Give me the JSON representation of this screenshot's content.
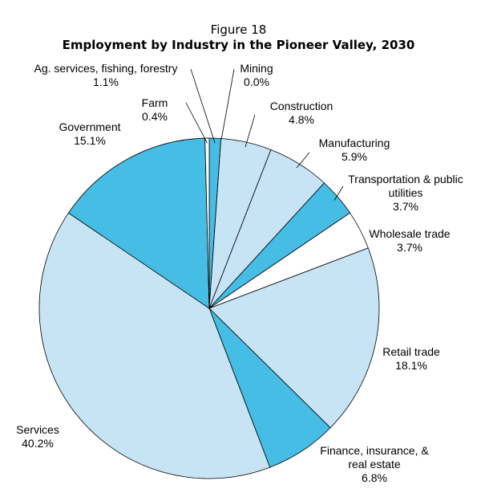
{
  "chart_data": {
    "type": "pie",
    "supertitle": "Figure 18",
    "title": "Employment by Industry in the Pioneer Valley, 2030",
    "categories": [
      "Ag. services, fishing, forestry",
      "Mining",
      "Construction",
      "Manufacturing",
      "Transportation & public utilities",
      "Wholesale trade",
      "Retail trade",
      "Finance, insurance, & real estate",
      "Services",
      "Government",
      "Farm"
    ],
    "values": [
      1.1,
      0.0,
      4.8,
      5.9,
      3.7,
      3.7,
      18.1,
      6.8,
      40.2,
      15.1,
      0.4
    ],
    "value_labels": [
      "1.1%",
      "0.0%",
      "4.8%",
      "5.9%",
      "3.7%",
      "3.7%",
      "18.1%",
      "6.8%",
      "40.2%",
      "15.1%",
      "0.4%"
    ],
    "colors": [
      "#45bde4",
      "#45bde4",
      "#c6e4f4",
      "#c6e4f4",
      "#45bde4",
      "#ffffff",
      "#c6e4f4",
      "#45bde4",
      "#c6e4f4",
      "#45bde4",
      "#ffffff"
    ]
  }
}
